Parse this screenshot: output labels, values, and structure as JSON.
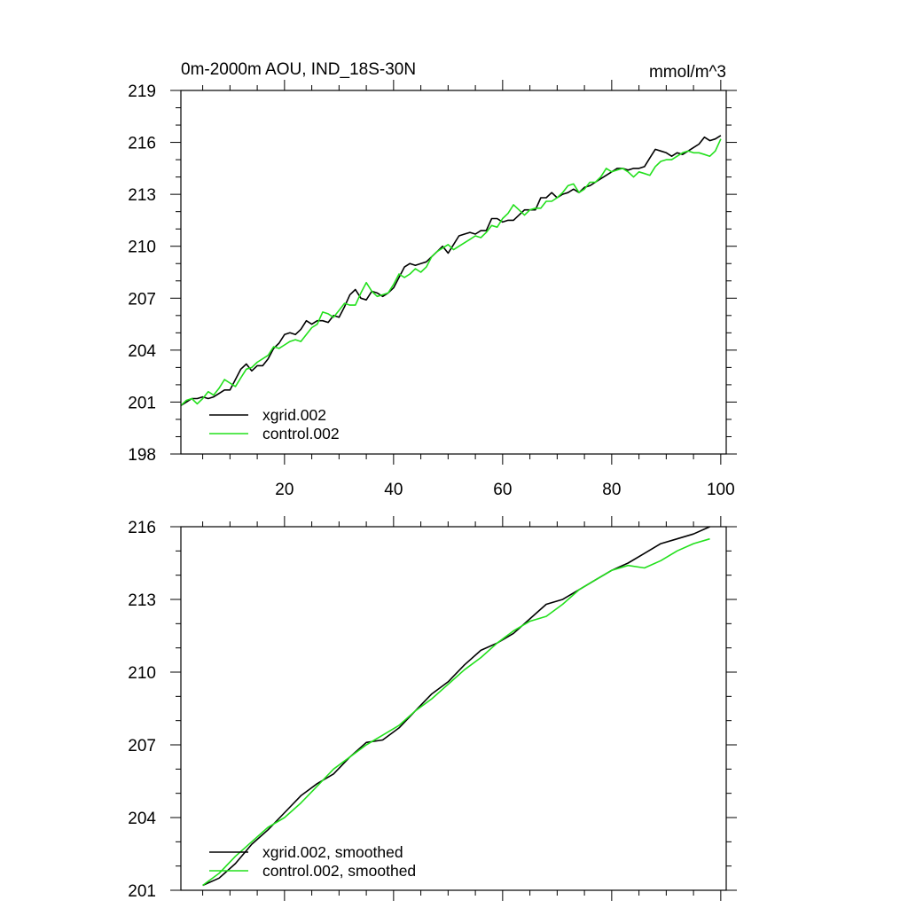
{
  "chart_data": [
    {
      "type": "line",
      "title": "0m-2000m AOU, IND_18S-30N",
      "units": "mmol/m^3",
      "xlabel": "",
      "ylabel": "",
      "xlim": [
        1,
        101
      ],
      "ylim": [
        198,
        219
      ],
      "xticks": [
        20,
        40,
        60,
        80,
        100
      ],
      "xtick_labels": [
        "20",
        "40",
        "60",
        "80",
        "100"
      ],
      "yticks": [
        198,
        201,
        204,
        207,
        210,
        213,
        216,
        219
      ],
      "ytick_labels": [
        "198",
        "201",
        "204",
        "207",
        "210",
        "213",
        "216",
        "219"
      ],
      "grid": false,
      "legend_position": "bottom-left",
      "x_start": 1,
      "series": [
        {
          "name": "xgrid.002",
          "color": "#000000",
          "values": [
            200.8,
            201.0,
            201.2,
            201.2,
            201.3,
            201.2,
            201.3,
            201.5,
            201.7,
            201.7,
            202.3,
            202.9,
            203.2,
            202.8,
            203.1,
            203.1,
            203.5,
            204.1,
            204.4,
            204.9,
            205.0,
            204.9,
            205.2,
            205.7,
            205.5,
            205.7,
            205.7,
            205.6,
            206.0,
            205.9,
            206.5,
            207.2,
            207.5,
            207.0,
            206.9,
            207.4,
            207.3,
            207.1,
            207.3,
            207.6,
            208.2,
            208.8,
            209.0,
            208.9,
            209.0,
            209.1,
            209.4,
            209.7,
            210.0,
            209.6,
            210.1,
            210.6,
            210.7,
            210.8,
            210.7,
            210.9,
            210.9,
            211.6,
            211.6,
            211.4,
            211.5,
            211.5,
            211.8,
            212.1,
            212.1,
            212.1,
            212.8,
            212.8,
            213.1,
            212.8,
            213.0,
            213.1,
            213.3,
            213.1,
            213.4,
            213.5,
            213.7,
            213.9,
            214.1,
            214.3,
            214.5,
            214.5,
            214.4,
            214.5,
            214.5,
            214.6,
            215.1,
            215.6,
            215.5,
            215.4,
            215.2,
            215.4,
            215.3,
            215.5,
            215.7,
            215.9,
            216.3,
            216.1,
            216.2,
            216.4
          ]
        },
        {
          "name": "control.002",
          "color": "#22e01c",
          "values": [
            200.8,
            201.1,
            201.2,
            200.9,
            201.2,
            201.6,
            201.4,
            201.8,
            202.3,
            202.1,
            201.9,
            202.4,
            202.9,
            203.0,
            203.3,
            203.5,
            203.7,
            204.2,
            204.1,
            204.3,
            204.5,
            204.6,
            204.5,
            204.9,
            205.3,
            205.5,
            206.2,
            206.1,
            205.9,
            206.3,
            206.7,
            206.6,
            206.6,
            207.3,
            207.9,
            207.4,
            207.1,
            207.2,
            207.3,
            207.8,
            208.4,
            208.2,
            208.4,
            208.7,
            208.5,
            208.8,
            209.4,
            209.7,
            209.9,
            210.1,
            209.8,
            210.0,
            210.2,
            210.4,
            210.6,
            210.5,
            210.8,
            211.2,
            211.1,
            211.6,
            211.9,
            212.4,
            212.1,
            211.8,
            212.1,
            212.2,
            212.2,
            212.6,
            212.6,
            212.8,
            213.1,
            213.5,
            213.6,
            213.1,
            213.3,
            213.7,
            213.7,
            214.0,
            214.5,
            214.3,
            214.4,
            214.5,
            214.3,
            214.0,
            214.3,
            214.2,
            214.1,
            214.6,
            214.9,
            215.0,
            215.0,
            215.2,
            215.4,
            215.5,
            215.4,
            215.4,
            215.3,
            215.2,
            215.5,
            216.2
          ]
        }
      ]
    },
    {
      "type": "line",
      "title": "",
      "xlabel": "",
      "ylabel": "",
      "xlim": [
        1,
        101
      ],
      "ylim": [
        201,
        216
      ],
      "xticks": [
        20,
        40,
        60,
        80,
        100
      ],
      "xtick_labels": [],
      "yticks": [
        201,
        204,
        207,
        210,
        213,
        216
      ],
      "ytick_labels": [
        "201",
        "204",
        "207",
        "210",
        "213",
        "216"
      ],
      "grid": false,
      "legend_position": "bottom-left",
      "series": [
        {
          "name": "xgrid.002, smoothed",
          "color": "#000000",
          "x": [
            5,
            8,
            11,
            14,
            17,
            20,
            23,
            26,
            29,
            32,
            35,
            38,
            41,
            44,
            47,
            50,
            53,
            56,
            59,
            62,
            65,
            68,
            71,
            74,
            77,
            80,
            83,
            86,
            89,
            92,
            95,
            98
          ],
          "values": [
            201.2,
            201.5,
            202.1,
            202.9,
            203.5,
            204.2,
            204.9,
            205.4,
            205.8,
            206.5,
            207.1,
            207.2,
            207.7,
            208.4,
            209.1,
            209.6,
            210.3,
            210.9,
            211.2,
            211.6,
            212.2,
            212.8,
            213.0,
            213.4,
            213.8,
            214.2,
            214.5,
            214.9,
            215.3,
            215.5,
            215.7,
            216.0
          ]
        },
        {
          "name": "control.002, smoothed",
          "color": "#22e01c",
          "x": [
            5,
            8,
            11,
            14,
            17,
            20,
            23,
            26,
            29,
            32,
            35,
            38,
            41,
            44,
            47,
            50,
            53,
            56,
            59,
            62,
            65,
            68,
            71,
            74,
            77,
            80,
            83,
            86,
            89,
            92,
            95,
            98
          ],
          "values": [
            201.2,
            201.7,
            202.4,
            203.0,
            203.6,
            204.0,
            204.6,
            205.3,
            206.0,
            206.5,
            207.0,
            207.4,
            207.8,
            208.4,
            208.9,
            209.5,
            210.1,
            210.6,
            211.2,
            211.7,
            212.1,
            212.3,
            212.8,
            213.4,
            213.8,
            214.2,
            214.4,
            214.3,
            214.6,
            215.0,
            215.3,
            215.5
          ]
        }
      ]
    }
  ]
}
